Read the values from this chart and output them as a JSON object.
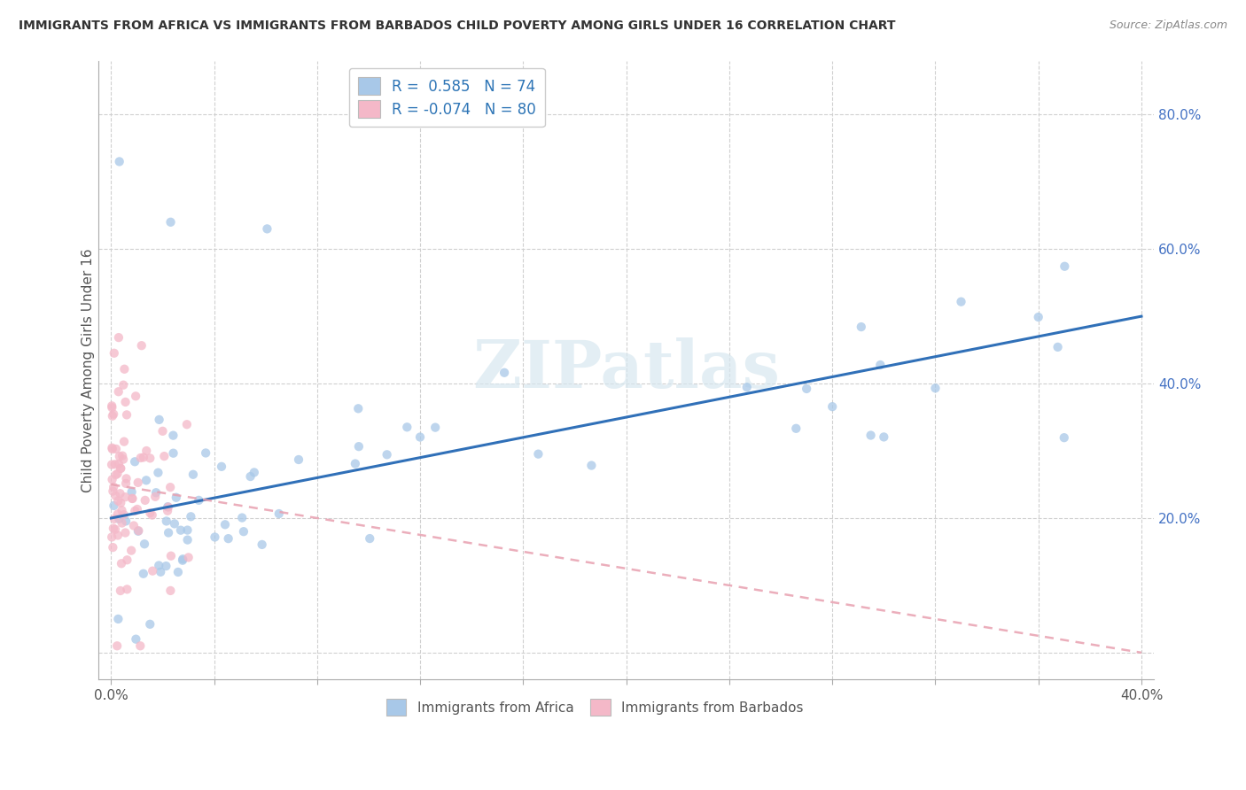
{
  "title": "IMMIGRANTS FROM AFRICA VS IMMIGRANTS FROM BARBADOS CHILD POVERTY AMONG GIRLS UNDER 16 CORRELATION CHART",
  "source": "Source: ZipAtlas.com",
  "ylabel": "Child Poverty Among Girls Under 16",
  "africa_R": 0.585,
  "africa_N": 74,
  "barbados_R": -0.074,
  "barbados_N": 80,
  "africa_color": "#a8c8e8",
  "barbados_color": "#f4b8c8",
  "africa_line_color": "#3070b8",
  "barbados_line_color": "#e8a0b0",
  "watermark": "ZIPatlas"
}
